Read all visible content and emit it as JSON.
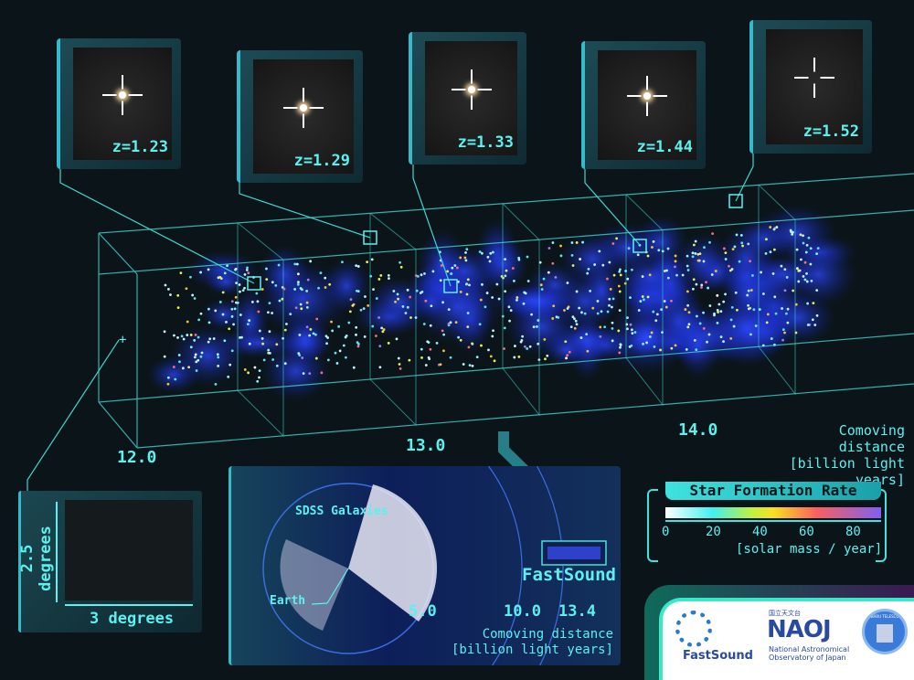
{
  "insets": [
    {
      "label": "z=1.23"
    },
    {
      "label": "z=1.29"
    },
    {
      "label": "z=1.33"
    },
    {
      "label": "z=1.44"
    },
    {
      "label": "z=1.52"
    }
  ],
  "main_axis": {
    "ticks": [
      "12.0",
      "13.0",
      "14.0"
    ],
    "label_line1": "Comoving distance",
    "label_line2": "[billion light years]"
  },
  "field_panel": {
    "height_label": "2.5 degrees",
    "width_label": "3 degrees"
  },
  "overview_panel": {
    "sdss_label": "SDSS Galaxies",
    "earth_label": "Earth",
    "survey_label": "FastSound",
    "ticks": [
      "5.0",
      "10.0",
      "13.4"
    ],
    "label_line1": "Comoving distance",
    "label_line2": "[billion light years]"
  },
  "legend": {
    "title": "Star Formation Rate",
    "ticks": [
      "0",
      "20",
      "40",
      "60",
      "80"
    ],
    "unit": "[solar mass / year]",
    "colors": [
      "#ffffff",
      "#40f0f0",
      "#c0f040",
      "#f8e020",
      "#f86060",
      "#8060f0"
    ]
  },
  "logos": {
    "fastsound": "FastSound",
    "naoj_jp": "国立天文台",
    "naoj": "NAOJ",
    "naoj_line1": "National Astronomical",
    "naoj_line2": "Observatory of Japan",
    "subaru": "SUBARU TELESCOPE"
  },
  "colors": {
    "accent": "#3fe3e0",
    "background": "#0b1519",
    "galaxy_blue": "#2a4cff"
  }
}
